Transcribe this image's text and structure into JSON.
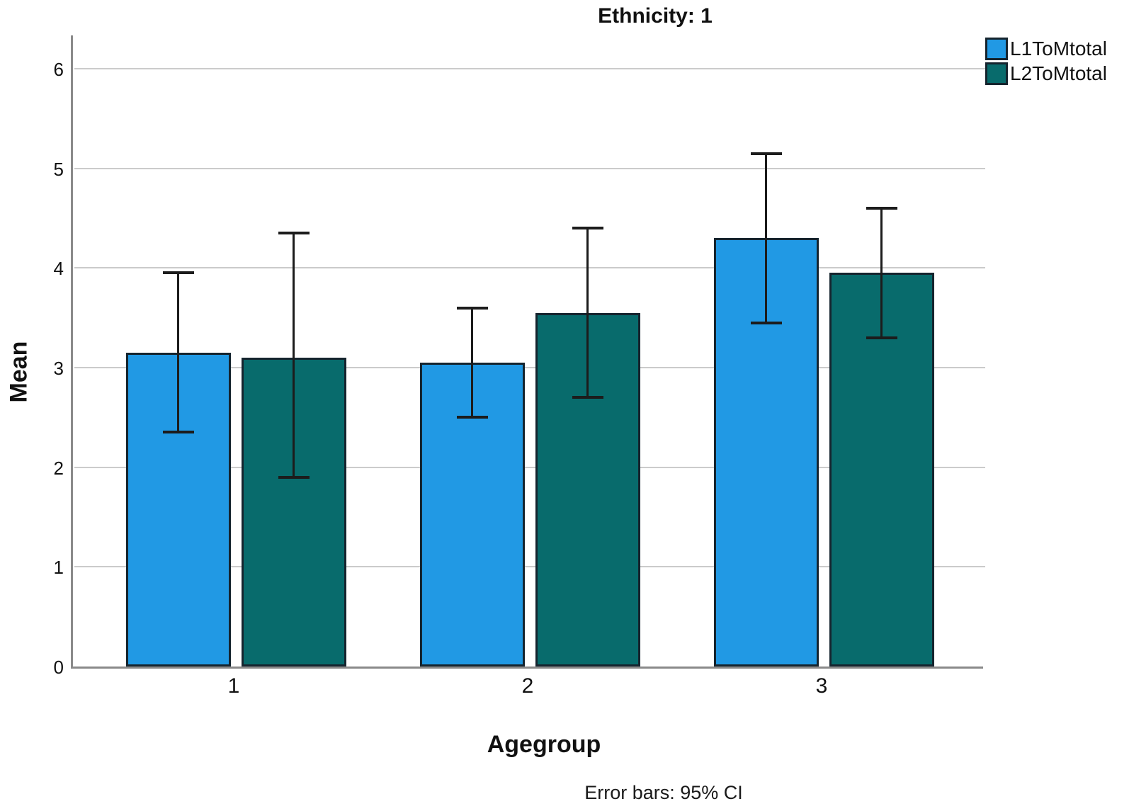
{
  "chart_data": {
    "type": "bar",
    "title": "Ethnicity: 1",
    "xlabel": "Agegroup",
    "ylabel": "Mean",
    "caption": "Error bars: 95% CI",
    "categories": [
      "1",
      "2",
      "3"
    ],
    "ytick_labels": [
      "0",
      "1",
      "2",
      "3",
      "4",
      "5",
      "6"
    ],
    "ylim": [
      0,
      6
    ],
    "grid": true,
    "legend_position": "top-right",
    "error_bars": "95% CI",
    "series": [
      {
        "name": "L1ToMtotal",
        "color": "#2199E4",
        "values": [
          3.15,
          3.05,
          4.3
        ],
        "ci_low": [
          2.35,
          2.5,
          3.45
        ],
        "ci_high": [
          3.95,
          3.6,
          5.15
        ]
      },
      {
        "name": "L2ToMtotal",
        "color": "#086B6C",
        "values": [
          3.1,
          3.55,
          3.95
        ],
        "ci_low": [
          1.9,
          2.7,
          3.3
        ],
        "ci_high": [
          4.35,
          4.4,
          4.6
        ]
      }
    ],
    "colors": {
      "bar_border": "#15242E",
      "error_bar": "#1C1C1C",
      "gridline": "#CBCBCB",
      "axis": "#8A8A8A",
      "text": "#111111"
    }
  }
}
